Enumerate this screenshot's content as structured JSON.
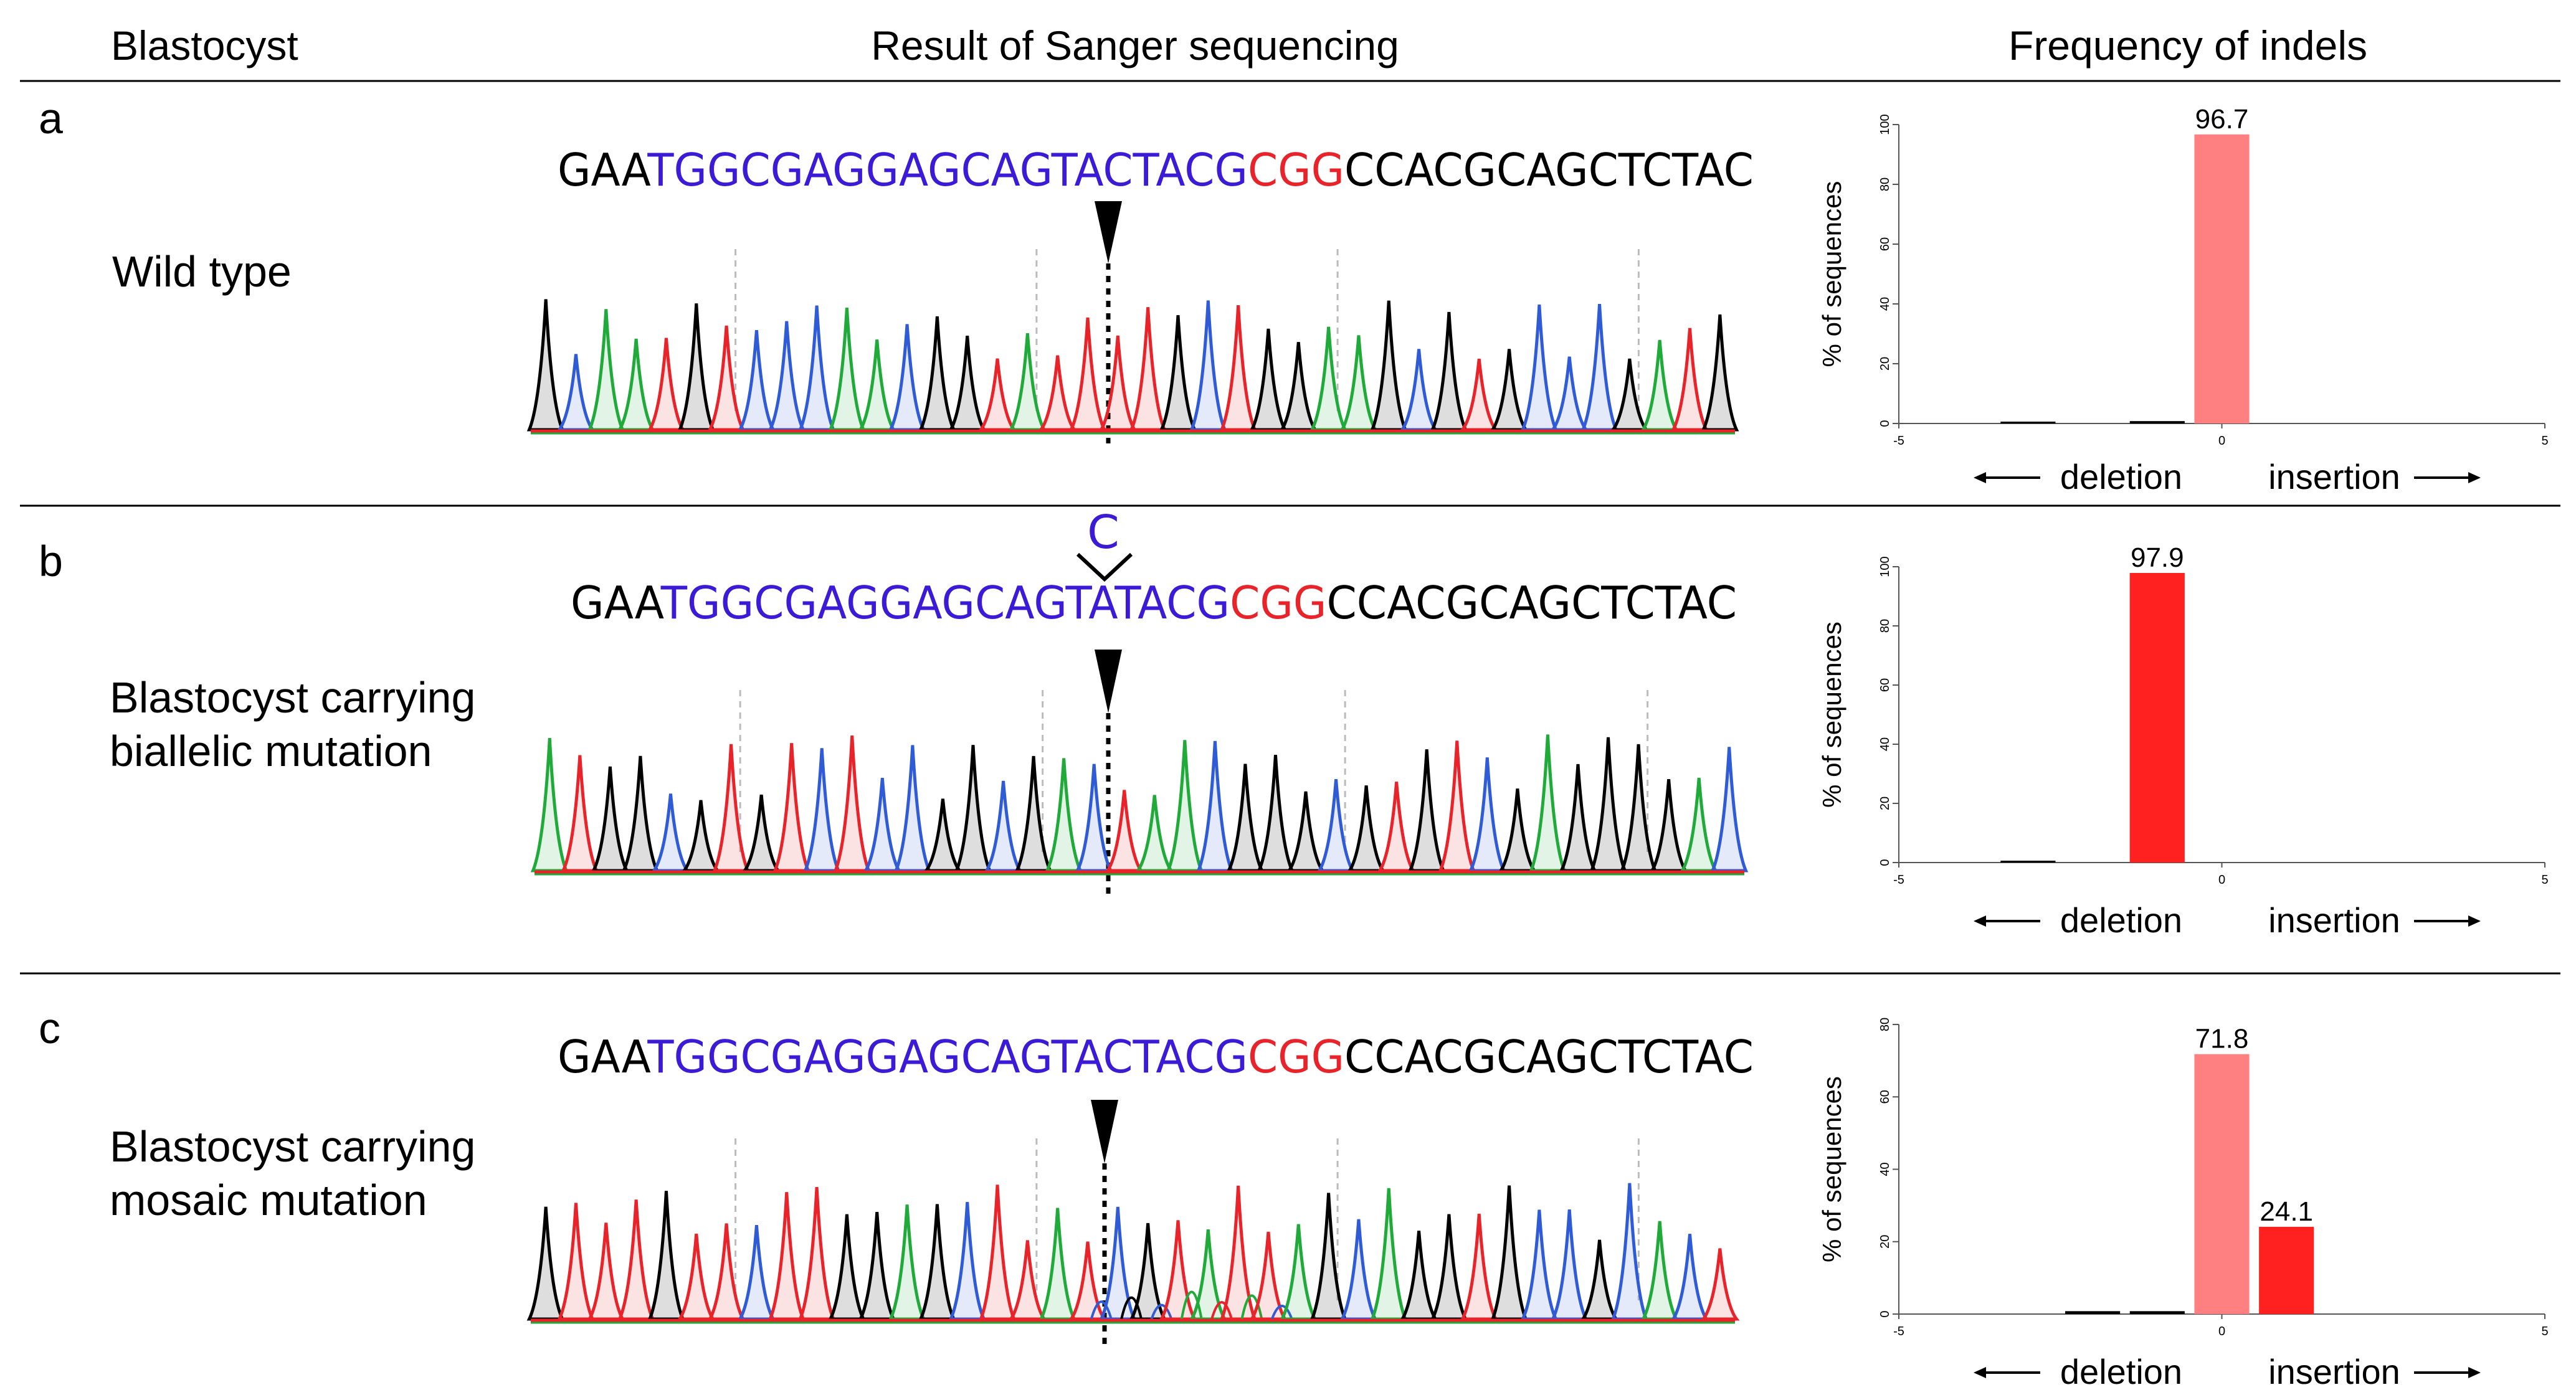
{
  "headers": {
    "blastocyst": "Blastocyst",
    "sanger": "Result of Sanger sequencing",
    "indels": "Frequency of indels"
  },
  "colors": {
    "black_base": "#000000",
    "guide": "#3b1bd6",
    "pam": "#e8232a",
    "trace_A": "#1faa3a",
    "trace_C": "#2f5bd6",
    "trace_G": "#000000",
    "trace_T": "#e8232a",
    "bar_wt": "#ff8080",
    "bar_mut": "#ff2020"
  },
  "panels": [
    {
      "letter": "a",
      "label_lines": [
        "Wild type"
      ],
      "insert_base": "",
      "sequence": [
        {
          "text": "GAA",
          "role": "flank"
        },
        {
          "text": "TGGCGAGGAGCAGTACTACG",
          "role": "guide"
        },
        {
          "text": "CGG",
          "role": "pam"
        },
        {
          "text": "CCACGCAGCTCTAC",
          "role": "flank"
        }
      ]
    },
    {
      "letter": "b",
      "label_lines": [
        "Blastocyst carrying",
        "biallelic mutation"
      ],
      "insert_base": "C",
      "sequence": [
        {
          "text": "GAA",
          "role": "flank"
        },
        {
          "text": "TGGCGAGGAGCAGTATACG",
          "role": "guide"
        },
        {
          "text": "CGG",
          "role": "pam"
        },
        {
          "text": "CCACGCAGCTCTAC",
          "role": "flank"
        }
      ]
    },
    {
      "letter": "c",
      "label_lines": [
        "Blastocyst carrying",
        "mosaic mutation"
      ],
      "insert_base": "",
      "sequence": [
        {
          "text": "GAA",
          "role": "flank"
        },
        {
          "text": "TGGCGAGGAGCAGTACTACG",
          "role": "guide"
        },
        {
          "text": "CGG",
          "role": "pam"
        },
        {
          "text": "CCACGCAGCTCTAC",
          "role": "flank"
        }
      ]
    }
  ],
  "chart_data": [
    {
      "type": "bar",
      "ylabel": "% of sequences",
      "xlim": [
        -5,
        5
      ],
      "ylim": [
        0,
        100
      ],
      "xticks": [
        "-5",
        "0",
        "5"
      ],
      "yticks": [
        "0",
        "20",
        "40",
        "60",
        "80",
        "100"
      ],
      "deletion_label": "deletion",
      "insertion_label": "insertion",
      "bars": [
        {
          "x": -3,
          "value": 0.3,
          "label": "",
          "color": "#000000"
        },
        {
          "x": -1,
          "value": 0.8,
          "label": "",
          "color": "#000000"
        },
        {
          "x": 0,
          "value": 96.7,
          "label": "96.7",
          "color": "#ff8080"
        }
      ]
    },
    {
      "type": "bar",
      "ylabel": "% of sequences",
      "xlim": [
        -5,
        5
      ],
      "ylim": [
        0,
        100
      ],
      "xticks": [
        "-5",
        "0",
        "5"
      ],
      "yticks": [
        "0",
        "20",
        "40",
        "60",
        "80",
        "100"
      ],
      "deletion_label": "deletion",
      "insertion_label": "insertion",
      "bars": [
        {
          "x": -3,
          "value": 0.3,
          "label": "",
          "color": "#000000"
        },
        {
          "x": -1,
          "value": 97.9,
          "label": "97.9",
          "color": "#ff2020"
        }
      ]
    },
    {
      "type": "bar",
      "ylabel": "% of sequences",
      "xlim": [
        -5,
        5
      ],
      "ylim": [
        0,
        80
      ],
      "xticks": [
        "-5",
        "0",
        "5"
      ],
      "yticks": [
        "0",
        "20",
        "40",
        "60",
        "80"
      ],
      "deletion_label": "deletion",
      "insertion_label": "insertion",
      "bars": [
        {
          "x": -2,
          "value": 0.8,
          "label": "",
          "color": "#000000"
        },
        {
          "x": -1,
          "value": 0.8,
          "label": "",
          "color": "#000000"
        },
        {
          "x": 0,
          "value": 71.8,
          "label": "71.8",
          "color": "#ff8080"
        },
        {
          "x": 1,
          "value": 24.1,
          "label": "24.1",
          "color": "#ff2020"
        }
      ]
    }
  ]
}
